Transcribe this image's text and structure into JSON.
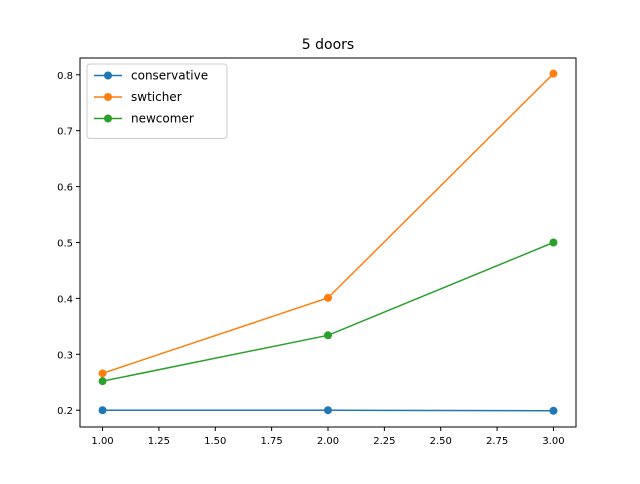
{
  "chart_data": {
    "type": "line",
    "title": "5 doors",
    "xlabel": "",
    "ylabel": "",
    "x": [
      1.0,
      2.0,
      3.0
    ],
    "series": [
      {
        "name": "conservative",
        "color": "#1f77b4",
        "values": [
          0.2,
          0.2,
          0.199
        ]
      },
      {
        "name": "swticher",
        "color": "#ff7f0e",
        "values": [
          0.266,
          0.401,
          0.802
        ]
      },
      {
        "name": "newcomer",
        "color": "#2ca02c",
        "values": [
          0.252,
          0.334,
          0.5
        ]
      }
    ],
    "xlim": [
      0.9,
      3.1
    ],
    "ylim": [
      0.17,
      0.83
    ],
    "xticks": [
      1.0,
      1.25,
      1.5,
      1.75,
      2.0,
      2.25,
      2.5,
      2.75,
      3.0
    ],
    "xtick_labels": [
      "1.00",
      "1.25",
      "1.50",
      "1.75",
      "2.00",
      "2.25",
      "2.50",
      "2.75",
      "3.00"
    ],
    "yticks": [
      0.2,
      0.3,
      0.4,
      0.5,
      0.6,
      0.7,
      0.8
    ],
    "ytick_labels": [
      "0.2",
      "0.3",
      "0.4",
      "0.5",
      "0.6",
      "0.7",
      "0.8"
    ],
    "grid": false,
    "legend_position": "upper-left",
    "marker": "circle"
  }
}
